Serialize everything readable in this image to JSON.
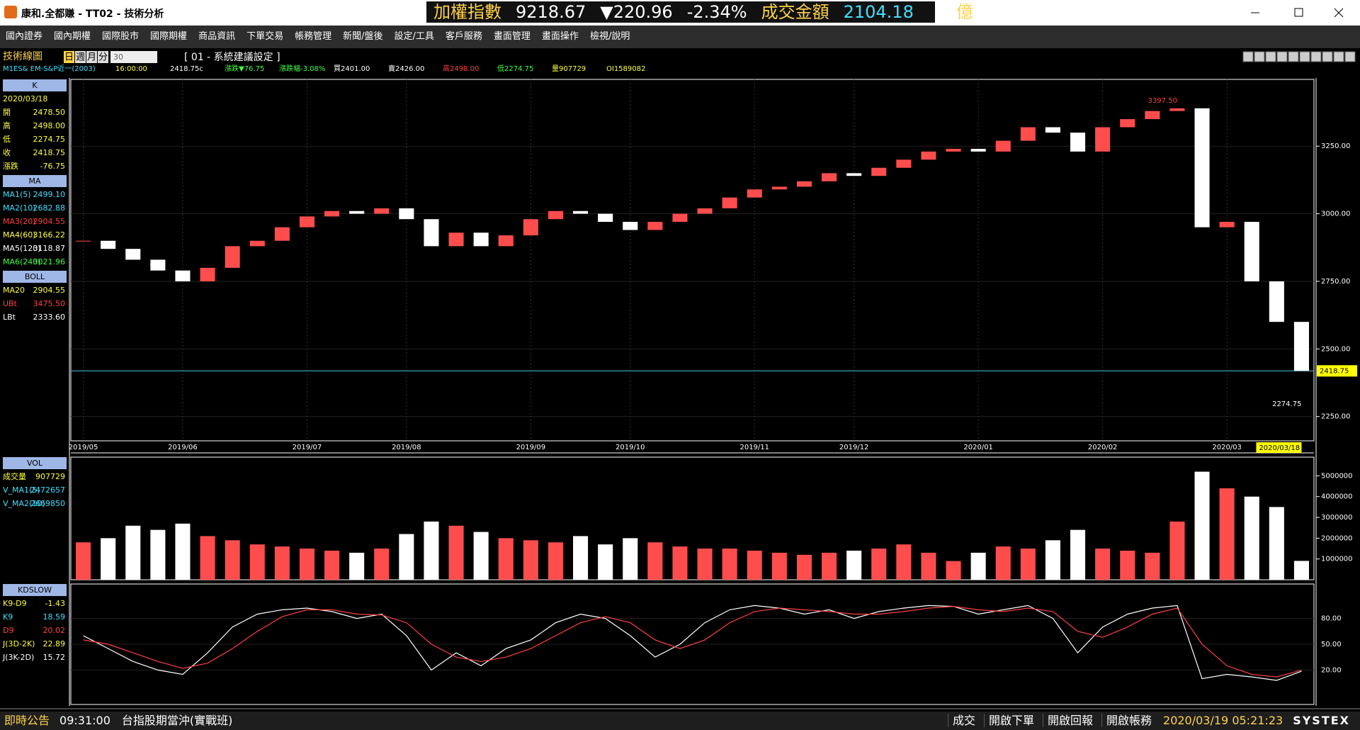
{
  "window": {
    "title": "康和.全都賺 - TT02 - 技術分析"
  },
  "ticker": {
    "name": "加權指數",
    "price": "9218.67",
    "change": "▼220.96",
    "pct": "-2.34%",
    "amount_label": "成交金額",
    "amount": "2104.18",
    "unit": "億"
  },
  "menu": [
    "國內證券",
    "國內期權",
    "國際股市",
    "國際期權",
    "商品資訊",
    "下單交易",
    "帳務管理",
    "新聞/盤後",
    "設定/工具",
    "客戶服務",
    "畫面管理",
    "畫面操作",
    "檢視/說明"
  ],
  "chart_header": {
    "title": "技術線圖",
    "periods": [
      "日",
      "週",
      "月",
      "分"
    ],
    "interval": "30",
    "setting": "[ 01 - 系統建議設定 ]",
    "symbol": "M1ES&  EM-S&P近一(2003)",
    "time": "16:00:00",
    "info": [
      {
        "text": "2418.75c",
        "color": "#ffffff"
      },
      {
        "text": "漲跌▼76.75",
        "color": "#40ff40"
      },
      {
        "text": "漲跌幅-3.08%",
        "color": "#40ff40"
      },
      {
        "text": "買2401.00",
        "color": "#ffffff"
      },
      {
        "text": "賣2426.00",
        "color": "#ffffff"
      },
      {
        "text": "高2498.00",
        "color": "#ff4040"
      },
      {
        "text": "低2274.75",
        "color": "#40ff40"
      },
      {
        "text": "量907729",
        "color": "#ffff40"
      },
      {
        "text": "OI1589082",
        "color": "#ffff40"
      }
    ]
  },
  "side_panel": [
    {
      "header": "K",
      "top": "price",
      "rows": [
        {
          "label": "2020/03/18",
          "color": "#ffff40"
        },
        {
          "label": "開",
          "value": "2478.50",
          "color": "#ffff40"
        },
        {
          "label": "高",
          "value": "2498.00",
          "color": "#ffff40"
        },
        {
          "label": "低",
          "value": "2274.75",
          "color": "#ffff40"
        },
        {
          "label": "收",
          "value": "2418.75",
          "color": "#ffff40"
        },
        {
          "label": "漲跌",
          "value": "-76.75",
          "color": "#ffff40"
        }
      ]
    },
    {
      "header": "MA",
      "rows": [
        {
          "label": "MA1(5)",
          "value": "2499.10",
          "color": "#40e0ff"
        },
        {
          "label": "MA2(10)",
          "value": "2682.88",
          "color": "#40e0ff"
        },
        {
          "label": "MA3(20)",
          "value": "2904.55",
          "color": "#ff4040"
        },
        {
          "label": "MA4(60)",
          "value": "3166.22",
          "color": "#ffff40"
        },
        {
          "label": "MA5(120)",
          "value": "3118.87",
          "color": "#ffffff"
        },
        {
          "label": "MA6(240)",
          "value": "3021.96",
          "color": "#40ff40"
        }
      ]
    },
    {
      "header": "BOLL",
      "rows": [
        {
          "label": "MA20",
          "value": "2904.55",
          "color": "#ffff40"
        },
        {
          "label": "UBt",
          "value": "3475.50",
          "color": "#ff4040"
        },
        {
          "label": "LBt",
          "value": "2333.60",
          "color": "#ffffff"
        }
      ]
    },
    {
      "header": "VOL",
      "top": "volume",
      "rows": [
        {
          "label": "成交量",
          "value": "907729",
          "color": "#ffff40"
        },
        {
          "label": "V_MA1(5)",
          "value": "2472657",
          "color": "#40e0ff"
        },
        {
          "label": "V_MA2(10)",
          "value": "2669850",
          "color": "#40e0ff"
        }
      ]
    },
    {
      "header": "KDSLOW",
      "top": "kd",
      "rows": [
        {
          "label": "K9-D9",
          "value": "-1.43",
          "color": "#ffff40"
        },
        {
          "label": "K9",
          "value": "18.59",
          "color": "#40e0ff"
        },
        {
          "label": "D9",
          "value": "20.02",
          "color": "#ff4040"
        },
        {
          "label": "J(3D-2K)",
          "value": "22.89",
          "color": "#ffff40"
        },
        {
          "label": "J(3K-2D)",
          "value": "15.72",
          "color": "#ffffff"
        }
      ]
    }
  ],
  "chart_data": [
    {
      "type": "candlestick",
      "values": [
        2900,
        2870,
        2830,
        2790,
        2750,
        2800,
        2880,
        2900,
        2950,
        2990,
        3010,
        3000,
        3020,
        2980,
        2880,
        2930,
        2880,
        2920,
        2980,
        3010,
        3000,
        2970,
        2940,
        2970,
        3000,
        3020,
        3060,
        3090,
        3100,
        3120,
        3150,
        3140,
        3170,
        3200,
        3230,
        3240,
        3230,
        3270,
        3320,
        3300,
        3230,
        3320,
        3350,
        3380,
        3390,
        2950,
        2970,
        2750,
        2600,
        2418.75
      ],
      "up_color": "#ff4d4d",
      "down_color": "#ffffff",
      "ylim": [
        2160,
        3497
      ],
      "yticks": [
        {
          "value": 2250,
          "label": "2250.00"
        },
        {
          "value": 2500,
          "label": "2500.00"
        },
        {
          "value": 2750,
          "label": "2750.00"
        },
        {
          "value": 3000,
          "label": "3000.00"
        },
        {
          "value": 3250,
          "label": "3250.00"
        }
      ],
      "xticks": [
        {
          "value": 0,
          "label": "2019/05"
        },
        {
          "value": 4,
          "label": "2019/06"
        },
        {
          "value": 9,
          "label": "2019/07"
        },
        {
          "value": 13,
          "label": "2019/08"
        },
        {
          "value": 18,
          "label": "2019/09"
        },
        {
          "value": 22,
          "label": "2019/10"
        },
        {
          "value": 27,
          "label": "2019/11"
        },
        {
          "value": 31,
          "label": "2019/12"
        },
        {
          "value": 36,
          "label": "2020/01"
        },
        {
          "value": 41,
          "label": "2020/02"
        },
        {
          "value": 46,
          "label": "2020/03"
        }
      ],
      "annotations": [
        {
          "text": "3397.50",
          "value": 3397.5,
          "index": 44,
          "color": "#ff4040"
        },
        {
          "text": "2274.75",
          "value": 2274.75,
          "index": 49,
          "color": "#ffffff"
        }
      ],
      "last": {
        "value": 2418.75,
        "label": "2418.75"
      },
      "last_date": "2020/03/18"
    },
    {
      "type": "bar",
      "values": [
        1800000,
        2000000,
        2600000,
        2400000,
        2700000,
        2100000,
        1900000,
        1700000,
        1600000,
        1500000,
        1400000,
        1300000,
        1500000,
        2200000,
        2800000,
        2600000,
        2300000,
        2000000,
        1900000,
        1800000,
        2100000,
        1700000,
        2000000,
        1800000,
        1600000,
        1500000,
        1500000,
        1400000,
        1300000,
        1200000,
        1300000,
        1400000,
        1500000,
        1700000,
        1300000,
        900000,
        1300000,
        1600000,
        1500000,
        1900000,
        2400000,
        1500000,
        1400000,
        1300000,
        2800000,
        5200000,
        4400000,
        4000000,
        3500000,
        907729
      ],
      "ylim": [
        0,
        5900000
      ],
      "yticks": [
        1000000,
        2000000,
        3000000,
        4000000,
        5000000
      ]
    },
    {
      "type": "line",
      "ylim": [
        -20,
        120
      ],
      "yticks": [
        {
          "value": 20,
          "label": "20.00"
        },
        {
          "value": 50,
          "label": "50.00"
        },
        {
          "value": 80,
          "label": "80.00"
        }
      ],
      "series": [
        {
          "color": "#ffffff",
          "values": [
            60,
            45,
            30,
            20,
            15,
            40,
            70,
            85,
            90,
            92,
            88,
            80,
            85,
            60,
            20,
            40,
            25,
            45,
            55,
            75,
            85,
            80,
            60,
            35,
            50,
            75,
            90,
            95,
            92,
            85,
            90,
            80,
            88,
            92,
            95,
            94,
            85,
            90,
            95,
            80,
            40,
            70,
            85,
            92,
            95,
            10,
            15,
            12,
            8,
            18.59
          ]
        },
        {
          "color": "#ff4040",
          "values": [
            55,
            50,
            40,
            30,
            22,
            28,
            45,
            65,
            82,
            90,
            90,
            85,
            84,
            75,
            50,
            35,
            30,
            35,
            45,
            60,
            75,
            82,
            75,
            55,
            45,
            55,
            75,
            88,
            92,
            90,
            88,
            85,
            85,
            88,
            92,
            94,
            90,
            88,
            92,
            88,
            65,
            58,
            70,
            85,
            92,
            50,
            25,
            15,
            12,
            20.02
          ]
        }
      ]
    }
  ],
  "status": {
    "notice": "即時公告",
    "time": "09:31:00",
    "message": "台指股期當沖(實戰班)",
    "buttons": [
      "成交",
      "開啟下單",
      "開啟回報",
      "開啟帳務"
    ],
    "clock": "2020/03/19 05:21:23",
    "brand": "SYSTEX"
  }
}
